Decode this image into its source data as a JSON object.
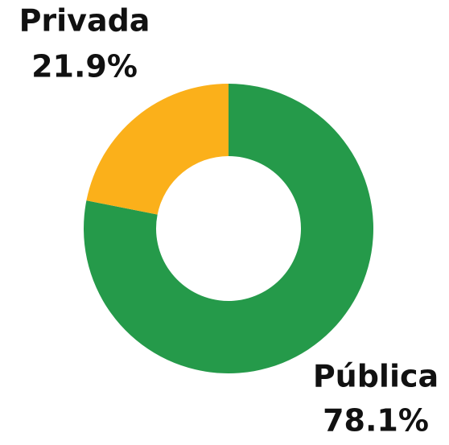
{
  "chart_data": {
    "type": "donut",
    "categories": [
      "Pública",
      "Privada"
    ],
    "values": [
      78.1,
      21.9
    ],
    "value_labels": [
      "78.1%",
      "21.9%"
    ],
    "colors": [
      "#259a4a",
      "#fbb01a"
    ]
  }
}
